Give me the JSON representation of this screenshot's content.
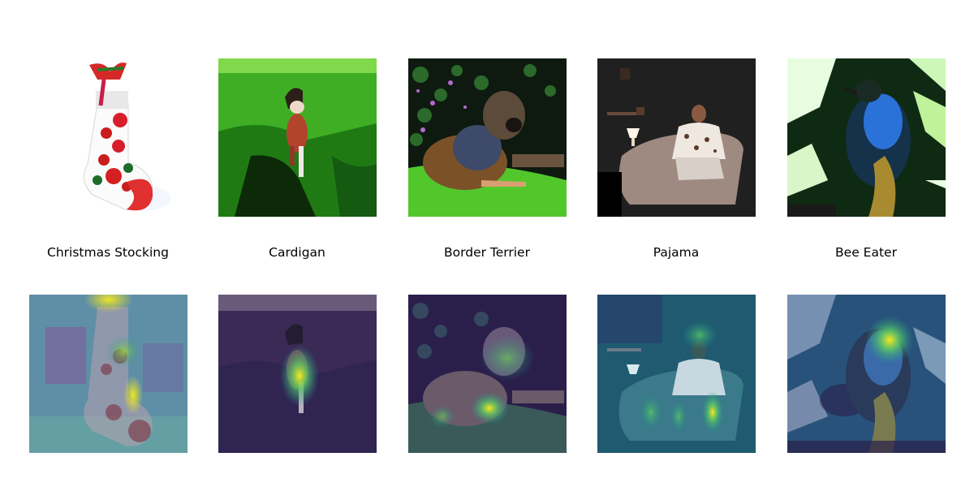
{
  "figure": {
    "captions": [
      "Christmas Stocking",
      "Cardigan",
      "Border Terrier",
      "Pajama",
      "Bee Eater"
    ],
    "colors": {
      "background": "#ffffff",
      "heatmap_low": "#3b0f5f",
      "heatmap_mid": "#21918c",
      "heatmap_high": "#f5e81f"
    }
  }
}
